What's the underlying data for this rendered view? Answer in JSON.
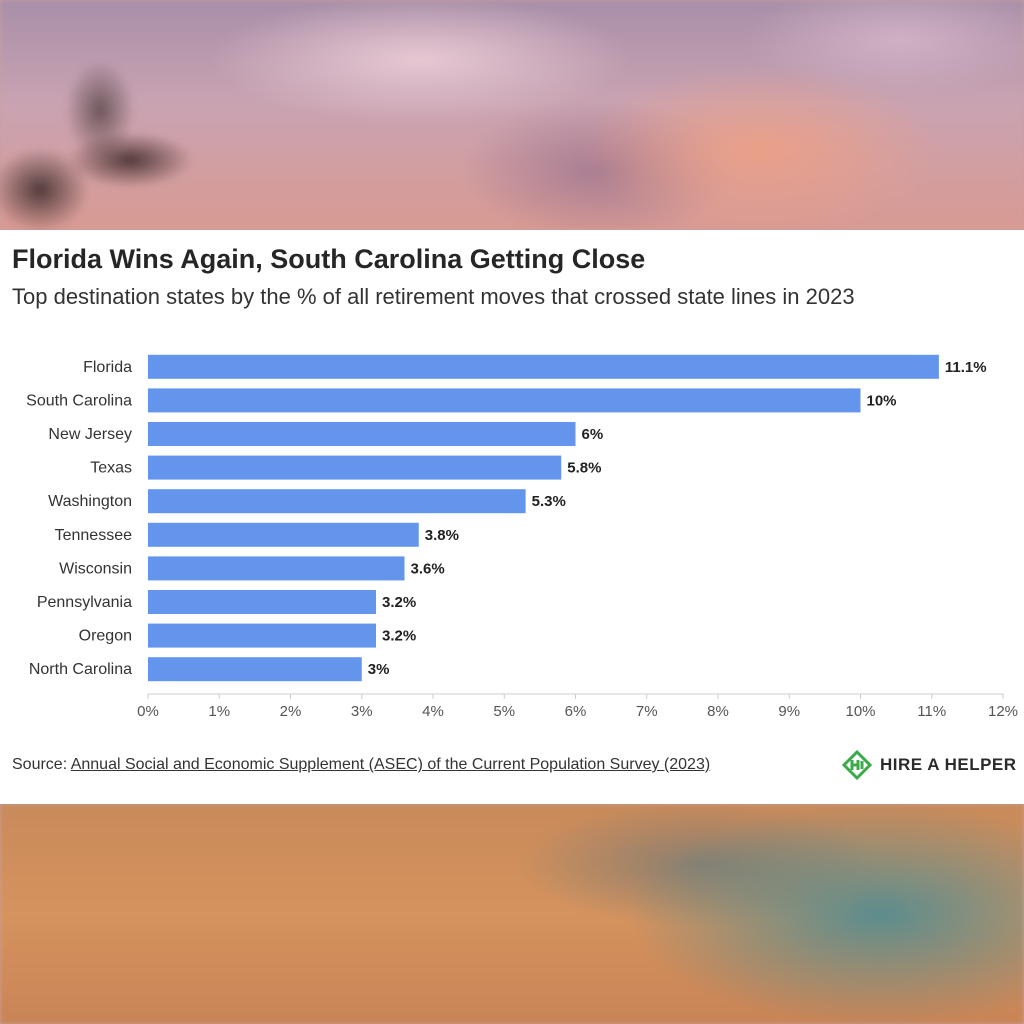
{
  "chart_data": {
    "type": "bar",
    "orientation": "horizontal",
    "title": "Florida Wins Again, South Carolina Getting Close",
    "subtitle": "Top destination states by the % of all retirement moves that crossed state lines in 2023",
    "categories": [
      "Florida",
      "South Carolina",
      "New Jersey",
      "Texas",
      "Washington",
      "Tennessee",
      "Wisconsin",
      "Pennsylvania",
      "Oregon",
      "North Carolina"
    ],
    "values": [
      11.1,
      10,
      6,
      5.8,
      5.3,
      3.8,
      3.6,
      3.2,
      3.2,
      3
    ],
    "data_labels": [
      "11.1%",
      "10%",
      "6%",
      "5.8%",
      "5.3%",
      "3.8%",
      "3.6%",
      "3.2%",
      "3.2%",
      "3%"
    ],
    "xlim": [
      0,
      12
    ],
    "x_ticks": [
      "0%",
      "1%",
      "2%",
      "3%",
      "4%",
      "5%",
      "6%",
      "7%",
      "8%",
      "9%",
      "10%",
      "11%",
      "12%"
    ],
    "xlabel": "",
    "ylabel": "",
    "bar_color": "#6495ed",
    "grid": false
  },
  "source": {
    "prefix": "Source:",
    "link_text": "Annual Social and Economic Supplement (ASEC) of the Current Population Survey (2023)"
  },
  "brand": {
    "name": "HIRE A HELPER",
    "logo_icon": "hire-a-helper-logo-icon",
    "logo_color": "#3aaa4a"
  }
}
